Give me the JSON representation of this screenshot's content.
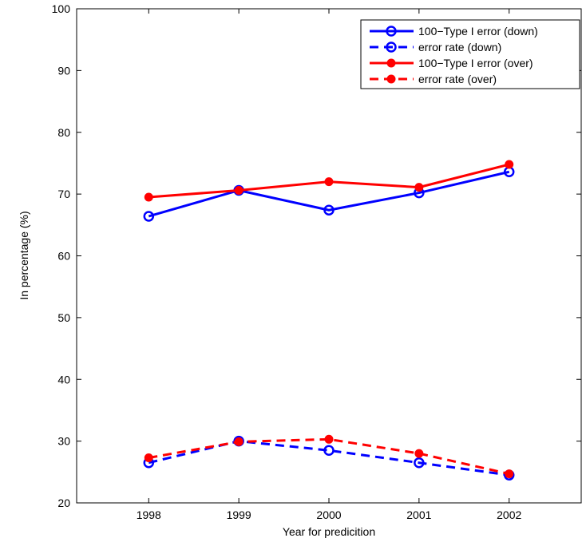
{
  "chart_data": {
    "type": "line",
    "title": "",
    "xlabel": "Year for predicition",
    "ylabel": "In percentage (%)",
    "x": [
      1998,
      1999,
      2000,
      2001,
      2002
    ],
    "xlim": [
      1997.2,
      2002.8
    ],
    "ylim": [
      20,
      100
    ],
    "xticks": [
      "1998",
      "1999",
      "2000",
      "2001",
      "2002"
    ],
    "yticks": [
      "20",
      "30",
      "40",
      "50",
      "60",
      "70",
      "80",
      "90",
      "100"
    ],
    "grid": false,
    "legend_position": "top-right",
    "series": [
      {
        "name": "100−Type I error (down)",
        "values": [
          66.4,
          70.6,
          67.4,
          70.2,
          73.6
        ],
        "color": "#0000ff",
        "line": "solid",
        "marker": "open-circle"
      },
      {
        "name": "error rate (down)",
        "values": [
          26.5,
          30.0,
          28.5,
          26.5,
          24.5
        ],
        "color": "#0000ff",
        "line": "dashed",
        "marker": "open-circle"
      },
      {
        "name": "100−Type I error (over)",
        "values": [
          69.5,
          70.6,
          72.0,
          71.1,
          74.8
        ],
        "color": "#ff0000",
        "line": "solid",
        "marker": "filled-circle"
      },
      {
        "name": "error rate (over)",
        "values": [
          27.3,
          29.9,
          30.3,
          28.0,
          24.7
        ],
        "color": "#ff0000",
        "line": "dashed",
        "marker": "filled-circle"
      }
    ]
  }
}
